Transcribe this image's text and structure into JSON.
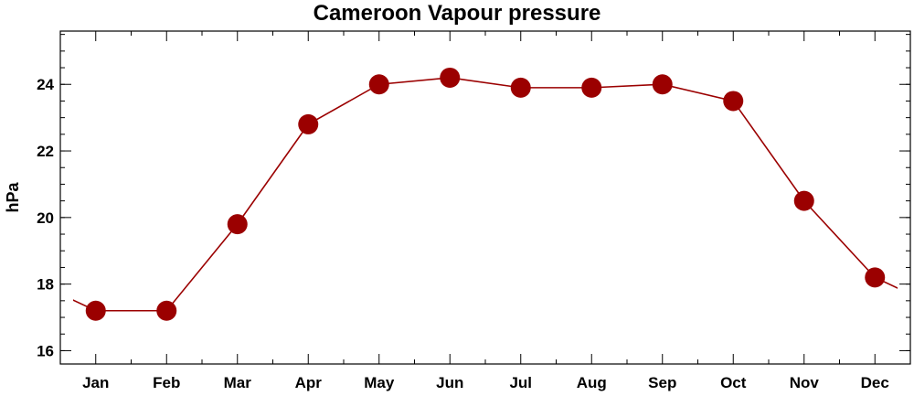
{
  "chart_data": {
    "type": "line",
    "title": "Cameroon Vapour pressure",
    "xlabel": "",
    "ylabel": "hPa",
    "categories": [
      "Jan",
      "Feb",
      "Mar",
      "Apr",
      "May",
      "Jun",
      "Jul",
      "Aug",
      "Sep",
      "Oct",
      "Nov",
      "Dec"
    ],
    "series": [
      {
        "values": [
          17.2,
          17.2,
          19.8,
          22.8,
          24.0,
          24.2,
          23.9,
          23.9,
          24.0,
          23.5,
          20.5,
          18.2
        ]
      }
    ],
    "ylim": [
      15.6,
      25.6
    ],
    "yticks": [
      16,
      18,
      20,
      22,
      24
    ],
    "grid": false,
    "line_color": "#9b0000",
    "marker_color": "#9b0000"
  }
}
